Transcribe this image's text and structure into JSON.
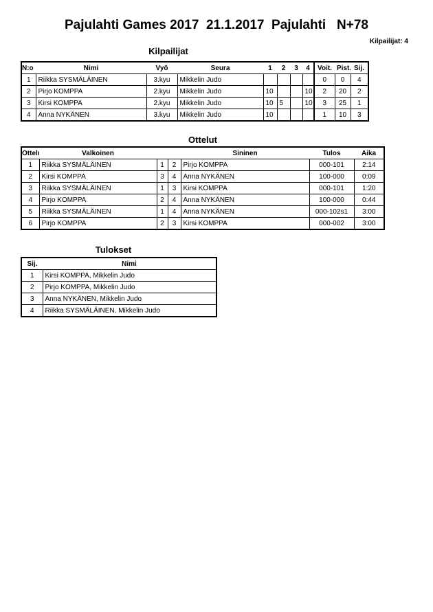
{
  "title": "Pajulahti Games 2017  21.1.2017  Pajulahti   N+78",
  "competitor_count": "Kilpailijat: 4",
  "competitors": {
    "title": "Kilpailijat",
    "headers": [
      "N:o",
      "Nimi",
      "Vyö",
      "Seura",
      "1",
      "2",
      "3",
      "4",
      "Voit.",
      "Pist.",
      "Sij."
    ],
    "rows": [
      [
        "1",
        "Riikka SYSMÄLÄINEN",
        "3.kyu",
        "Mikkelin Judo",
        "",
        "",
        "",
        "",
        "0",
        "0",
        "4"
      ],
      [
        "2",
        "Pirjo KOMPPA",
        "2.kyu",
        "Mikkelin Judo",
        "10",
        "",
        "",
        "10",
        "2",
        "20",
        "2"
      ],
      [
        "3",
        "Kirsi KOMPPA",
        "2.kyu",
        "Mikkelin Judo",
        "10",
        "5",
        "",
        "10",
        "3",
        "25",
        "1"
      ],
      [
        "4",
        "Anna NYKÄNEN",
        "3.kyu",
        "Mikkelin Judo",
        "10",
        "",
        "",
        "",
        "1",
        "10",
        "3"
      ]
    ]
  },
  "matches": {
    "title": "Ottelut",
    "headers": [
      "Ottelu",
      "Valkoinen",
      "Sininen",
      "Tulos",
      "Aika"
    ],
    "rows": [
      [
        "1",
        "Riikka SYSMÄLÄINEN",
        "1",
        "2",
        "Pirjo KOMPPA",
        "000-101",
        "2:14"
      ],
      [
        "2",
        "Kirsi KOMPPA",
        "3",
        "4",
        "Anna NYKÄNEN",
        "100-000",
        "0:09"
      ],
      [
        "3",
        "Riikka SYSMÄLÄINEN",
        "1",
        "3",
        "Kirsi KOMPPA",
        "000-101",
        "1:20"
      ],
      [
        "4",
        "Pirjo KOMPPA",
        "2",
        "4",
        "Anna NYKÄNEN",
        "100-000",
        "0:44"
      ],
      [
        "5",
        "Riikka SYSMÄLÄINEN",
        "1",
        "4",
        "Anna NYKÄNEN",
        "000-102s1",
        "3:00"
      ],
      [
        "6",
        "Pirjo KOMPPA",
        "2",
        "3",
        "Kirsi KOMPPA",
        "000-002",
        "3:00"
      ]
    ]
  },
  "results": {
    "title": "Tulokset",
    "headers": [
      "Sij.",
      "Nimi"
    ],
    "rows": [
      [
        "1",
        "Kirsi KOMPPA, Mikkelin Judo"
      ],
      [
        "2",
        "Pirjo KOMPPA, Mikkelin Judo"
      ],
      [
        "3",
        "Anna NYKÄNEN, Mikkelin Judo"
      ],
      [
        "4",
        "Riikka SYSMÄLÄINEN, Mikkelin Judo"
      ]
    ]
  }
}
